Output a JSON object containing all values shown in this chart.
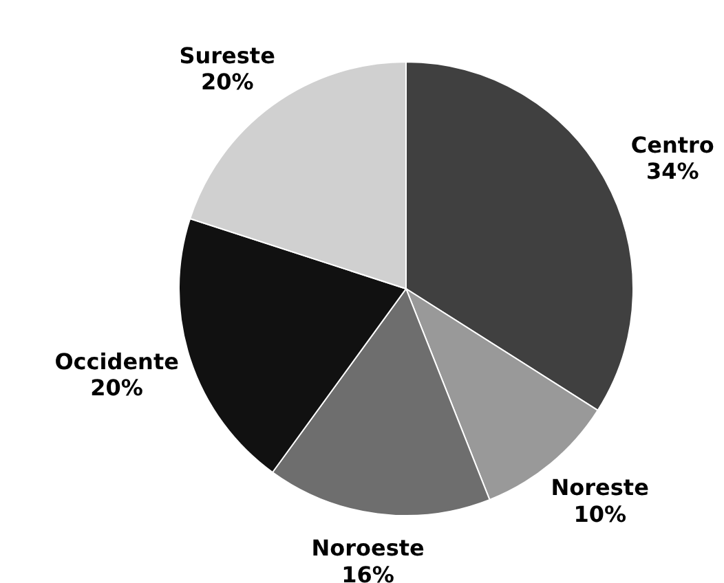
{
  "chart_data": {
    "type": "pie",
    "categories": [
      "Centro",
      "Noreste",
      "Noroeste",
      "Occidente",
      "Sureste"
    ],
    "values": [
      34,
      10,
      16,
      20,
      20
    ],
    "value_labels": [
      "34%",
      "10%",
      "16%",
      "20%",
      "20%"
    ],
    "colors": [
      "#404040",
      "#999999",
      "#6e6e6e",
      "#111111",
      "#d0d0d0"
    ]
  }
}
